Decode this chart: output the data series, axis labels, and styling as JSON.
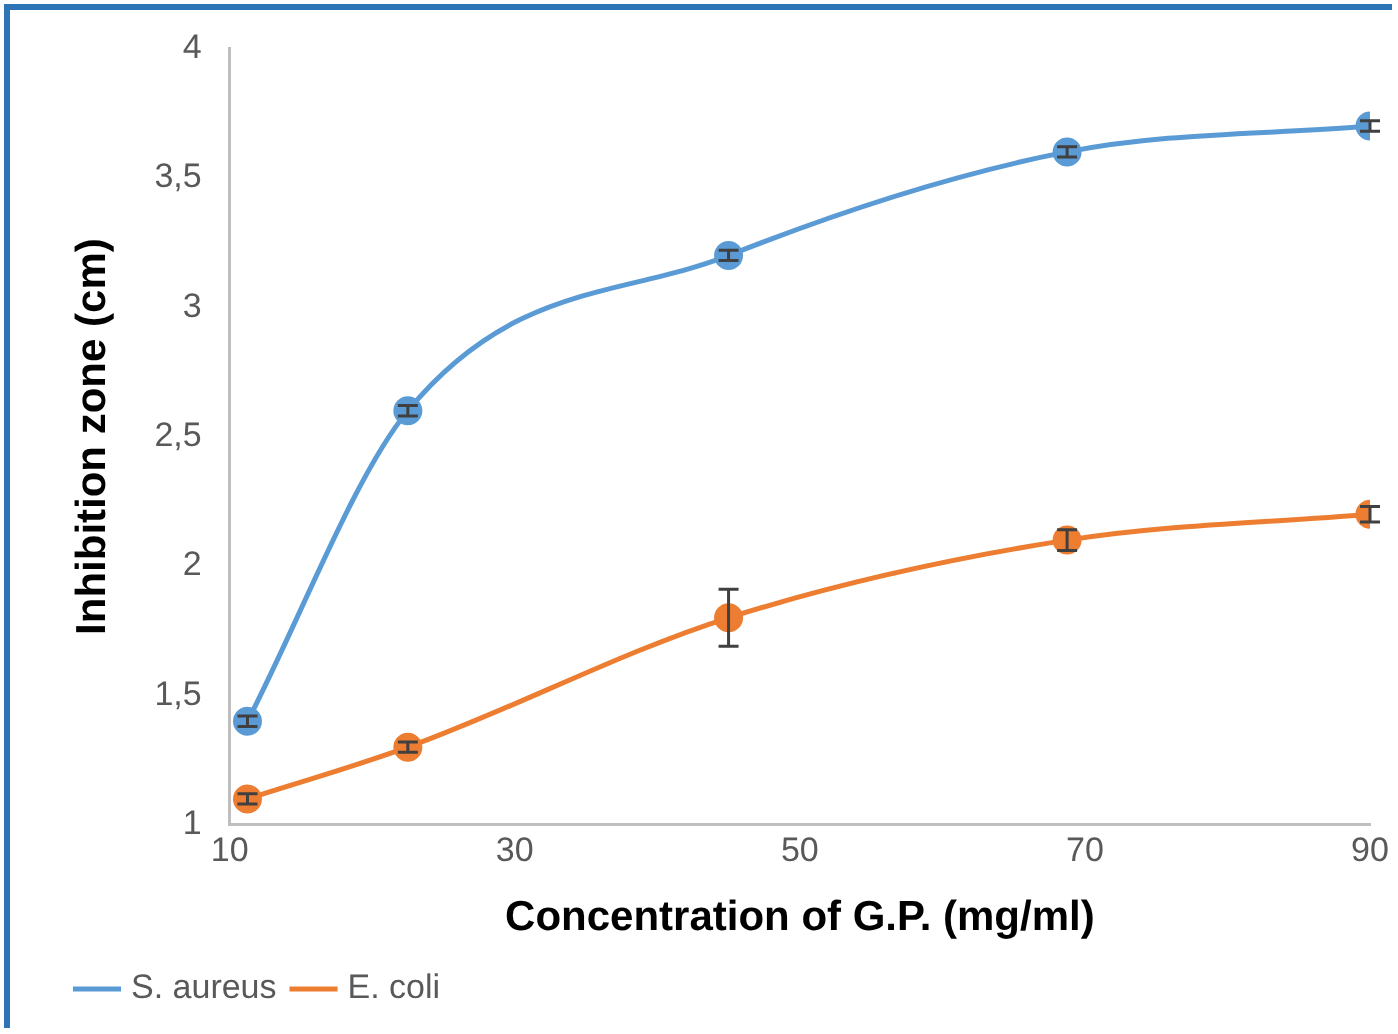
{
  "chart_data": {
    "type": "line",
    "xlabel": "Concentration of G.P. (mg/ml)",
    "ylabel": "Inhibition zone (cm)",
    "x": [
      11.25,
      22.5,
      45,
      68.75,
      90
    ],
    "xlim": [
      10,
      90
    ],
    "xticks": [
      10,
      30,
      50,
      70,
      90
    ],
    "ylim": [
      1,
      4
    ],
    "yticks": [
      1,
      {
        "value": 1.5,
        "label": "1,5"
      },
      2,
      {
        "value": 2.5,
        "label": "2,5"
      },
      3,
      {
        "value": 3.5,
        "label": "3,5"
      },
      4
    ],
    "series": [
      {
        "name": "S. aureus",
        "color": "#5b9bd5",
        "values": [
          1.4,
          2.6,
          3.2,
          3.6,
          3.7
        ],
        "errors": [
          0.02,
          0.02,
          0.02,
          0.02,
          0.02
        ]
      },
      {
        "name": "E. coli",
        "color": "#ed7d31",
        "values": [
          1.1,
          1.3,
          1.8,
          2.1,
          2.2
        ],
        "errors": [
          0.02,
          0.02,
          0.11,
          0.04,
          0.03
        ]
      }
    ],
    "grid": false,
    "legend": "bottom left",
    "marker": "circle",
    "line_style": "solid"
  }
}
